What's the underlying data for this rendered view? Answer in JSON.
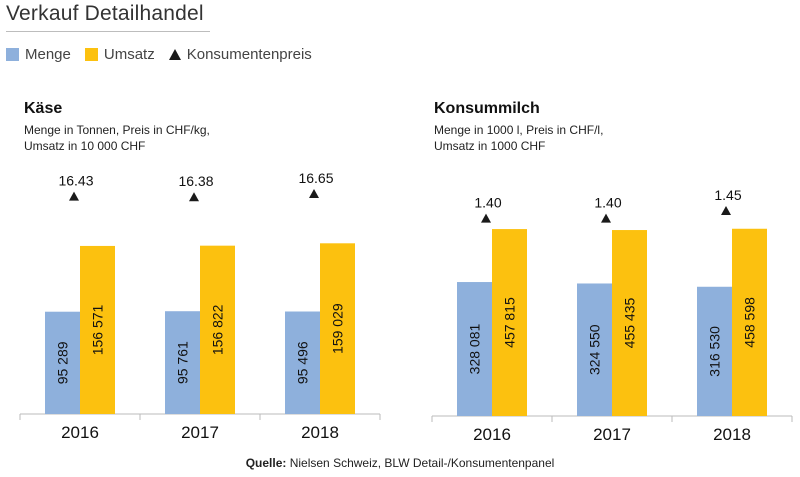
{
  "page_title": "Verkauf Detailhandel",
  "legend": [
    {
      "label": "Menge",
      "color": "#8eb0dc",
      "shape": "square"
    },
    {
      "label": "Umsatz",
      "color": "#fcc10f",
      "shape": "square"
    },
    {
      "label": "Konsumentenpreis",
      "color": "#1a1a1a",
      "shape": "triangle"
    }
  ],
  "source": {
    "label": "Quelle:",
    "text": " Nielsen Schweiz, BLW Detail-/Konsumentenpanel"
  },
  "chart_data": [
    {
      "type": "bar",
      "title": "Käse",
      "subtitle_lines": [
        "Menge in Tonnen, Preis in CHF/kg,",
        "Umsatz in 10 000 CHF"
      ],
      "categories": [
        "2016",
        "2017",
        "2018"
      ],
      "series": [
        {
          "name": "Menge",
          "values": [
            95289,
            95761,
            95496
          ],
          "labels": [
            "95 289",
            "95 761",
            "95 496"
          ]
        },
        {
          "name": "Umsatz",
          "values": [
            156571,
            156822,
            159029
          ],
          "labels": [
            "156 571",
            "156 822",
            "159 029"
          ]
        }
      ],
      "price": {
        "name": "Konsumentenpreis",
        "values": [
          16.43,
          16.38,
          16.65
        ],
        "labels": [
          "16.43",
          "16.38",
          "16.65"
        ]
      },
      "ylim": [
        0,
        218000
      ],
      "price_range": [
        0,
        16.65
      ],
      "grid": false
    },
    {
      "type": "bar",
      "title": "Konsummilch",
      "subtitle_lines": [
        "Menge in 1000 l, Preis in CHF/l,",
        "Umsatz in 1000 CHF"
      ],
      "categories": [
        "2016",
        "2017",
        "2018"
      ],
      "series": [
        {
          "name": "Menge",
          "values": [
            328081,
            324550,
            316530
          ],
          "labels": [
            "328 081",
            "324 550",
            "316 530"
          ]
        },
        {
          "name": "Umsatz",
          "values": [
            457815,
            455435,
            458598
          ],
          "labels": [
            "457 815",
            "455 435",
            "458 598"
          ]
        }
      ],
      "price": {
        "name": "Konsumentenpreis",
        "values": [
          1.4,
          1.4,
          1.45
        ],
        "labels": [
          "1.40",
          "1.40",
          "1.45"
        ]
      },
      "ylim": [
        0,
        578000
      ],
      "price_range": [
        0,
        1.45
      ],
      "grid": false
    }
  ]
}
